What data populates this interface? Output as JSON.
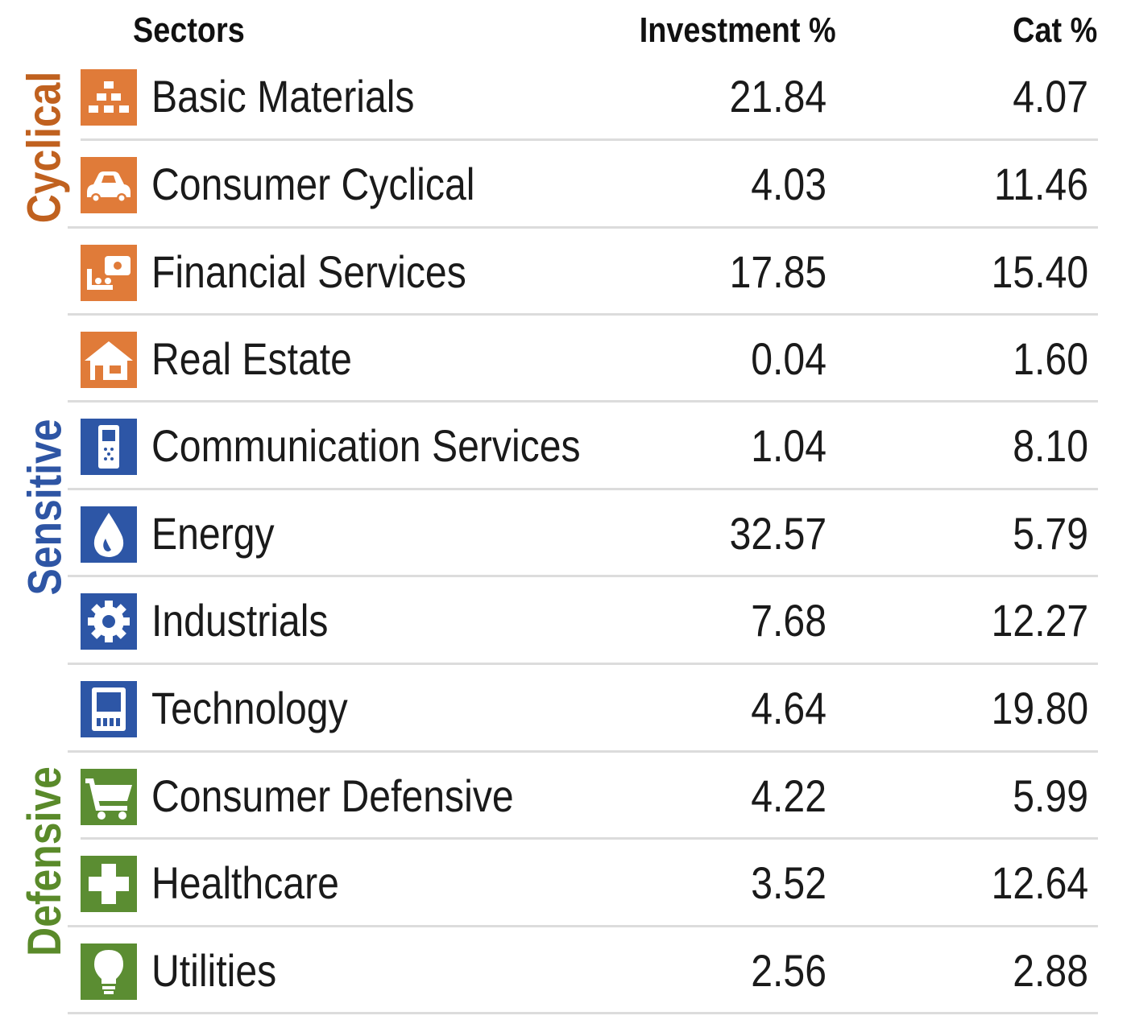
{
  "header": {
    "sectors": "Sectors",
    "investment": "Investment  %",
    "cat": "Cat  %"
  },
  "groups": [
    {
      "label": "Cyclical",
      "color": "#c0611f"
    },
    {
      "label": "Sensitive",
      "color": "#2e55a4"
    },
    {
      "label": "Defensive",
      "color": "#5a8a2a"
    }
  ],
  "icon_colors": {
    "cyclical": "#e07b39",
    "sensitive": "#2d56a6",
    "defensive": "#5b8d32"
  },
  "rows": [
    {
      "name": "Basic Materials",
      "investment": "21.84",
      "cat": "4.07",
      "icon": "gold-bars-icon"
    },
    {
      "name": "Consumer Cyclical",
      "investment": "4.03",
      "cat": "11.46",
      "icon": "car-icon"
    },
    {
      "name": "Financial Services",
      "investment": "17.85",
      "cat": "15.40",
      "icon": "money-cart-icon"
    },
    {
      "name": "Real Estate",
      "investment": "0.04",
      "cat": "1.60",
      "icon": "house-icon"
    },
    {
      "name": "Communication Services",
      "investment": "1.04",
      "cat": "8.10",
      "icon": "phone-icon"
    },
    {
      "name": "Energy",
      "investment": "32.57",
      "cat": "5.79",
      "icon": "flame-icon"
    },
    {
      "name": "Industrials",
      "investment": "7.68",
      "cat": "12.27",
      "icon": "gear-icon"
    },
    {
      "name": "Technology",
      "investment": "4.64",
      "cat": "19.80",
      "icon": "computer-icon"
    },
    {
      "name": "Consumer Defensive",
      "investment": "4.22",
      "cat": "5.99",
      "icon": "shopping-cart-icon"
    },
    {
      "name": "Healthcare",
      "investment": "3.52",
      "cat": "12.64",
      "icon": "medical-cross-icon"
    },
    {
      "name": "Utilities",
      "investment": "2.56",
      "cat": "2.88",
      "icon": "light-bulb-icon"
    }
  ]
}
